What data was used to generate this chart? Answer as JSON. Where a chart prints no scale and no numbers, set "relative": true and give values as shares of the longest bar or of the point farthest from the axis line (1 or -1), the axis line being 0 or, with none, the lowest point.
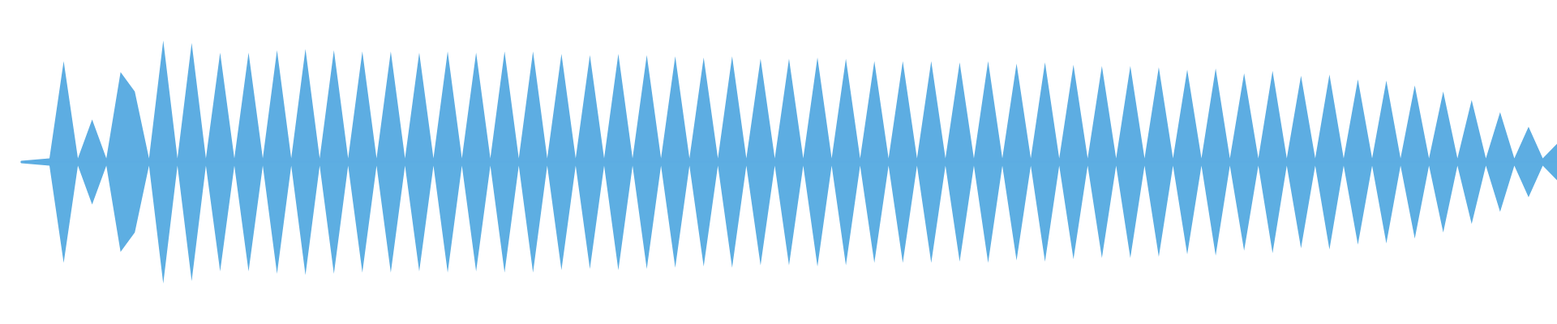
{
  "chart_data": {
    "type": "area",
    "relative": true,
    "legend": false,
    "categories": [
      null,
      null,
      null,
      null,
      null,
      null,
      null,
      null,
      null,
      null,
      null,
      null,
      null,
      null,
      null,
      null,
      null,
      null,
      null,
      null,
      null,
      null,
      null,
      null,
      null,
      null,
      null,
      null,
      null,
      null,
      null,
      null,
      null,
      null,
      null,
      null,
      null,
      null,
      null,
      null,
      null,
      null,
      null,
      null,
      null,
      null,
      null,
      null,
      null,
      null,
      null,
      null,
      null,
      null,
      null,
      null,
      null,
      null,
      null,
      null,
      null,
      null,
      null,
      null,
      null,
      null,
      null,
      null,
      null,
      null,
      null,
      null,
      null,
      null,
      null,
      null,
      null,
      null,
      null,
      null,
      null,
      null,
      null,
      null,
      null,
      null,
      null,
      null,
      null,
      null,
      null,
      null,
      null,
      null,
      null,
      null,
      null,
      null,
      null,
      null,
      null,
      null,
      null,
      null,
      null,
      null,
      null,
      null,
      null
    ],
    "series": [
      {
        "color": "#5dade2",
        "values": [
          0.01,
          0.02,
          0.03,
          0.83,
          0.03,
          0.35,
          0.03,
          0.74,
          0.58,
          0.03,
          1.0,
          0.03,
          0.98,
          0.03,
          0.9,
          0.03,
          0.9,
          0.03,
          0.92,
          0.03,
          0.93,
          0.03,
          0.92,
          0.03,
          0.91,
          0.03,
          0.91,
          0.03,
          0.9,
          0.03,
          0.91,
          0.03,
          0.9,
          0.03,
          0.91,
          0.03,
          0.91,
          0.03,
          0.89,
          0.03,
          0.88,
          0.03,
          0.89,
          0.03,
          0.88,
          0.03,
          0.87,
          0.03,
          0.86,
          0.03,
          0.87,
          0.03,
          0.85,
          0.03,
          0.85,
          0.03,
          0.86,
          0.03,
          0.85,
          0.03,
          0.83,
          0.03,
          0.83,
          0.03,
          0.83,
          0.03,
          0.82,
          0.03,
          0.83,
          0.03,
          0.81,
          0.03,
          0.82,
          0.03,
          0.8,
          0.03,
          0.79,
          0.03,
          0.79,
          0.03,
          0.78,
          0.03,
          0.76,
          0.03,
          0.77,
          0.03,
          0.73,
          0.03,
          0.75,
          0.03,
          0.71,
          0.03,
          0.72,
          0.03,
          0.68,
          0.03,
          0.67,
          0.03,
          0.63,
          0.03,
          0.58,
          0.03,
          0.51,
          0.03,
          0.41,
          0.03,
          0.29,
          0.03,
          0.15
        ]
      },
      {
        "color": "#5daee2",
        "values": [
          -0.01,
          -0.02,
          -0.03,
          -0.83,
          -0.03,
          -0.35,
          -0.03,
          -0.74,
          -0.58,
          -0.03,
          -1.0,
          -0.03,
          -0.98,
          -0.03,
          -0.9,
          -0.03,
          -0.9,
          -0.03,
          -0.92,
          -0.03,
          -0.93,
          -0.03,
          -0.92,
          -0.03,
          -0.91,
          -0.03,
          -0.91,
          -0.03,
          -0.9,
          -0.03,
          -0.91,
          -0.03,
          -0.9,
          -0.03,
          -0.91,
          -0.03,
          -0.91,
          -0.03,
          -0.89,
          -0.03,
          -0.88,
          -0.03,
          -0.89,
          -0.03,
          -0.88,
          -0.03,
          -0.87,
          -0.03,
          -0.86,
          -0.03,
          -0.87,
          -0.03,
          -0.85,
          -0.03,
          -0.85,
          -0.03,
          -0.86,
          -0.03,
          -0.85,
          -0.03,
          -0.83,
          -0.03,
          -0.83,
          -0.03,
          -0.83,
          -0.03,
          -0.82,
          -0.03,
          -0.83,
          -0.03,
          -0.81,
          -0.03,
          -0.82,
          -0.03,
          -0.8,
          -0.03,
          -0.79,
          -0.03,
          -0.79,
          -0.03,
          -0.78,
          -0.03,
          -0.76,
          -0.03,
          -0.77,
          -0.03,
          -0.73,
          -0.03,
          -0.75,
          -0.03,
          -0.71,
          -0.03,
          -0.72,
          -0.03,
          -0.68,
          -0.03,
          -0.67,
          -0.03,
          -0.63,
          -0.03,
          -0.58,
          -0.03,
          -0.51,
          -0.03,
          -0.41,
          -0.03,
          -0.29,
          -0.03,
          -0.15
        ]
      }
    ]
  }
}
